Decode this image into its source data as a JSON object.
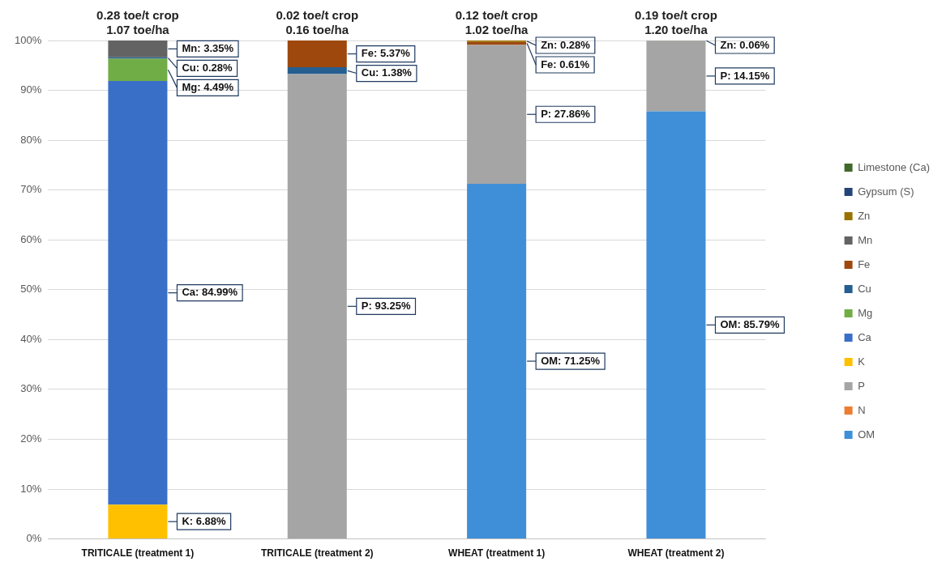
{
  "chart_data": {
    "type": "bar",
    "stacked": true,
    "categories": [
      "TRITICALE (treatment 1)",
      "TRITICALE (treatment 2)",
      "WHEAT (treatment 1)",
      "WHEAT (treatment 2)"
    ],
    "series": [
      {
        "name": "OM",
        "color": "#3f8fd8",
        "values": [
          null,
          null,
          71.25,
          85.79
        ],
        "value_labels": [
          null,
          null,
          "OM: 71.25%",
          "OM: 85.79%"
        ]
      },
      {
        "name": "N",
        "color": "#ed7d31",
        "values": [
          null,
          null,
          null,
          null
        ]
      },
      {
        "name": "P",
        "color": "#a5a5a5",
        "values": [
          null,
          93.25,
          27.86,
          14.15
        ],
        "value_labels": [
          null,
          "P: 93.25%",
          "P: 27.86%",
          "P: 14.15%"
        ]
      },
      {
        "name": "K",
        "color": "#ffc000",
        "values": [
          6.88,
          null,
          null,
          null
        ],
        "value_labels": [
          "K: 6.88%",
          null,
          null,
          null
        ]
      },
      {
        "name": "Ca",
        "color": "#3a6fc8",
        "values": [
          84.99,
          null,
          null,
          null
        ],
        "value_labels": [
          "Ca: 84.99%",
          null,
          null,
          null
        ]
      },
      {
        "name": "Mg",
        "color": "#70ad47",
        "values": [
          4.49,
          null,
          null,
          null
        ],
        "value_labels": [
          "Mg: 4.49%",
          null,
          null,
          null
        ]
      },
      {
        "name": "Cu",
        "color": "#255e91",
        "values": [
          0.28,
          1.38,
          null,
          null
        ],
        "value_labels": [
          "Cu: 0.28%",
          "Cu: 1.38%",
          null,
          null
        ]
      },
      {
        "name": "Fe",
        "color": "#9e480e",
        "values": [
          null,
          5.37,
          0.61,
          null
        ],
        "value_labels": [
          null,
          "Fe: 5.37%",
          "Fe: 0.61%",
          null
        ]
      },
      {
        "name": "Mn",
        "color": "#636363",
        "values": [
          3.35,
          null,
          null,
          null
        ],
        "value_labels": [
          "Mn: 3.35%",
          null,
          null,
          null
        ]
      },
      {
        "name": "Zn",
        "color": "#997300",
        "values": [
          null,
          null,
          0.28,
          0.06
        ],
        "value_labels": [
          null,
          null,
          "Zn: 0.28%",
          "Zn: 0.06%"
        ]
      },
      {
        "name": "Gypsum (S)",
        "color": "#264478",
        "values": [
          null,
          null,
          null,
          null
        ]
      },
      {
        "name": "Limestone (Ca)",
        "color": "#43682b",
        "values": [
          null,
          null,
          null,
          null
        ]
      }
    ],
    "ylim": [
      0,
      100
    ],
    "yticks": [
      {
        "value": 0,
        "label": "0%"
      },
      {
        "value": 10,
        "label": "10%"
      },
      {
        "value": 20,
        "label": "20%"
      },
      {
        "value": 30,
        "label": "30%"
      },
      {
        "value": 40,
        "label": "40%"
      },
      {
        "value": 50,
        "label": "50%"
      },
      {
        "value": 60,
        "label": "60%"
      },
      {
        "value": 70,
        "label": "70%"
      },
      {
        "value": 80,
        "label": "80%"
      },
      {
        "value": 90,
        "label": "90%"
      },
      {
        "value": 100,
        "label": "100%"
      }
    ],
    "grid": "y",
    "legend": "right",
    "annotations": [
      "0.28 toe/t crop\n1.07 toe/ha",
      "0.02 toe/t crop\n0.16 toe/ha",
      "0.12 toe/t crop\n1.02 toe/ha",
      "0.19 toe/t crop\n1.20 toe/ha"
    ]
  }
}
